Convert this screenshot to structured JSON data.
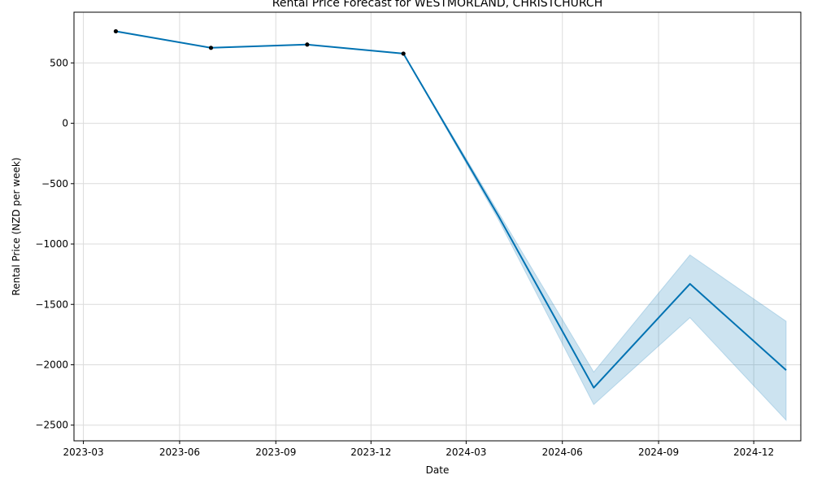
{
  "chart_data": {
    "type": "line",
    "title": "Rental Price Forecast for WESTMORLAND, CHRISTCHURCH",
    "xlabel": "Date",
    "ylabel": "Rental Price (NZD per week)",
    "xlim": [
      "2023-02-20",
      "2025-01-15"
    ],
    "ylim": [
      -2630,
      920
    ],
    "x_ticks": [
      "2023-03",
      "2023-06",
      "2023-09",
      "2023-12",
      "2024-03",
      "2024-06",
      "2024-09",
      "2024-12"
    ],
    "x_tick_dates": [
      "2023-03-01",
      "2023-06-01",
      "2023-09-01",
      "2023-12-01",
      "2024-03-01",
      "2024-06-01",
      "2024-09-01",
      "2024-12-01"
    ],
    "y_ticks": [
      500,
      0,
      -500,
      -1000,
      -1500,
      -2000,
      -2500
    ],
    "y_tick_labels": [
      "500",
      "0",
      "−500",
      "−1000",
      "−1500",
      "−2000",
      "−2500"
    ],
    "grid": true,
    "colors": {
      "line": "#0072b2",
      "band": "#0072b2",
      "points": "#000000"
    },
    "observed": {
      "x": [
        "2023-04-01",
        "2023-07-01",
        "2023-10-01",
        "2024-01-01"
      ],
      "y": [
        762,
        625,
        652,
        577
      ]
    },
    "forecast": {
      "x": [
        "2023-04-01",
        "2023-07-01",
        "2023-10-01",
        "2024-01-01",
        "2024-04-01",
        "2024-07-01",
        "2024-10-01",
        "2025-01-01"
      ],
      "yhat": [
        762,
        625,
        652,
        577,
        -770,
        -2190,
        -1330,
        -2045
      ],
      "yhat_lower": [
        762,
        625,
        652,
        577,
        -800,
        -2330,
        -1610,
        -2460
      ],
      "yhat_upper": [
        762,
        625,
        652,
        577,
        -740,
        -2060,
        -1090,
        -1640
      ]
    }
  }
}
